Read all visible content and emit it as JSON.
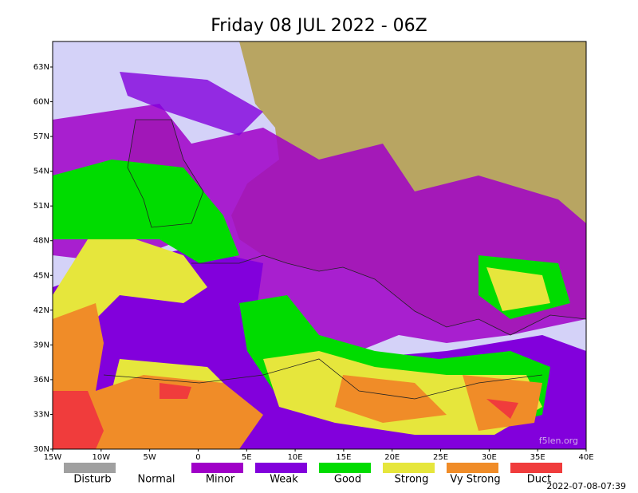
{
  "header": {
    "title": "Friday 08 JUL 2022 - 06Z"
  },
  "map": {
    "lat_labels": [
      "63N",
      "60N",
      "57N",
      "54N",
      "51N",
      "48N",
      "45N",
      "42N",
      "39N",
      "36N",
      "33N",
      "30N"
    ],
    "lon_labels": [
      "15W",
      "10W",
      "5W",
      "0",
      "5E",
      "10E",
      "15E",
      "20E",
      "25E",
      "30E",
      "35E",
      "40E"
    ],
    "watermark": "f5len.org"
  },
  "legend": {
    "items": [
      {
        "label": "Disturb",
        "color": "#a0a0a0"
      },
      {
        "label": "Normal"
      },
      {
        "label": "Minor",
        "color": "#a000c8"
      },
      {
        "label": "Weak",
        "color": "#8200dc"
      },
      {
        "label": "Good",
        "color": "#00dc00"
      },
      {
        "label": "Strong",
        "color": "#e6e63c"
      },
      {
        "label": "Vy Strong",
        "color": "#f08c28"
      },
      {
        "label": "Duct",
        "color": "#f03c3c"
      }
    ]
  },
  "footer": {
    "timestamp": "2022-07-08-07:39"
  }
}
